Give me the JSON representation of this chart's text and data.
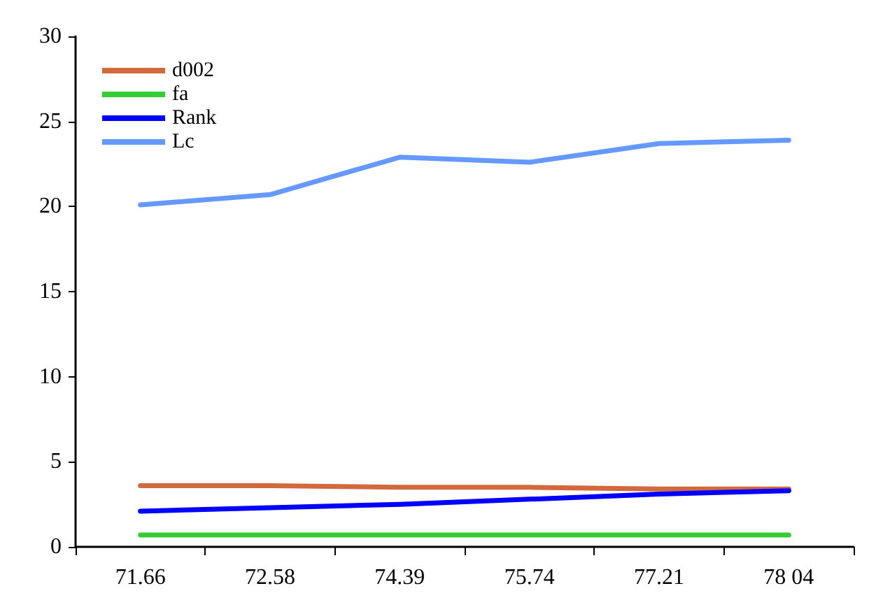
{
  "chart_data": {
    "type": "line",
    "categories": [
      "71.66",
      "72.58",
      "74.39",
      "75.74",
      "77.21",
      "78 04"
    ],
    "series": [
      {
        "name": "d002",
        "color": "#d2693c",
        "values": [
          3.6,
          3.6,
          3.5,
          3.5,
          3.4,
          3.4
        ]
      },
      {
        "name": "fa",
        "color": "#33cc33",
        "values": [
          0.7,
          0.7,
          0.7,
          0.7,
          0.7,
          0.7
        ]
      },
      {
        "name": "Rank",
        "color": "#0000ff",
        "values": [
          2.1,
          2.3,
          2.5,
          2.8,
          3.1,
          3.3
        ]
      },
      {
        "name": "Lc",
        "color": "#6699ff",
        "values": [
          20.1,
          20.7,
          22.9,
          22.6,
          23.7,
          23.9
        ]
      }
    ],
    "ylim": [
      0,
      30
    ],
    "yticks": [
      0,
      5,
      10,
      15,
      20,
      25,
      30
    ],
    "grid": false,
    "legend": "top left",
    "marker": "none",
    "line_style": "solid"
  }
}
